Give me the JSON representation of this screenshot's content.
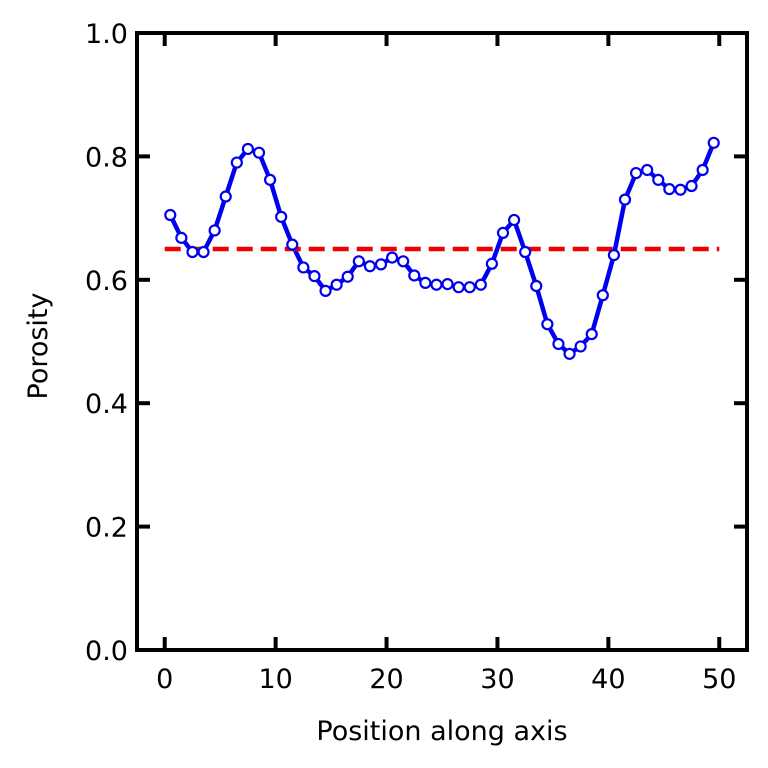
{
  "chart_data": {
    "type": "line",
    "title": "",
    "xlabel": "Position along axis",
    "ylabel": "Porosity",
    "xlim": [
      -2.5,
      52.5
    ],
    "ylim": [
      0.0,
      1.0
    ],
    "xticks": [
      0,
      10,
      20,
      30,
      40,
      50
    ],
    "yticks": [
      0.0,
      0.2,
      0.4,
      0.6,
      0.8,
      1.0
    ],
    "xtick_labels": [
      "0",
      "10",
      "20",
      "30",
      "40",
      "50"
    ],
    "ytick_labels": [
      "0.0",
      "0.2",
      "0.4",
      "0.6",
      "0.8",
      "1.0"
    ],
    "grid": false,
    "legend": "none",
    "series": [
      {
        "style": "solid line with hollow circle markers",
        "color": "#0000ee",
        "x": [
          0.5,
          1.5,
          2.5,
          3.5,
          4.5,
          5.5,
          6.5,
          7.5,
          8.5,
          9.5,
          10.5,
          11.5,
          12.5,
          13.5,
          14.5,
          15.5,
          16.5,
          17.5,
          18.5,
          19.5,
          20.5,
          21.5,
          22.5,
          23.5,
          24.5,
          25.5,
          26.5,
          27.5,
          28.5,
          29.5,
          30.5,
          31.5,
          32.5,
          33.5,
          34.5,
          35.5,
          36.5,
          37.5,
          38.5,
          39.5,
          40.5,
          41.5,
          42.5,
          43.5,
          44.5,
          45.5,
          46.5,
          47.5,
          48.5,
          49.5
        ],
        "values": [
          0.705,
          0.668,
          0.645,
          0.645,
          0.68,
          0.735,
          0.79,
          0.812,
          0.806,
          0.762,
          0.702,
          0.657,
          0.62,
          0.606,
          0.582,
          0.592,
          0.605,
          0.63,
          0.622,
          0.625,
          0.636,
          0.63,
          0.607,
          0.595,
          0.592,
          0.593,
          0.588,
          0.588,
          0.592,
          0.626,
          0.676,
          0.697,
          0.645,
          0.59,
          0.528,
          0.496,
          0.48,
          0.492,
          0.512,
          0.575,
          0.64,
          0.73,
          0.773,
          0.778,
          0.762,
          0.747,
          0.746,
          0.752,
          0.778,
          0.822
        ]
      },
      {
        "style": "dashed line",
        "color": "#ee0000",
        "x": [
          0,
          50
        ],
        "values": [
          0.65,
          0.65
        ]
      }
    ]
  }
}
